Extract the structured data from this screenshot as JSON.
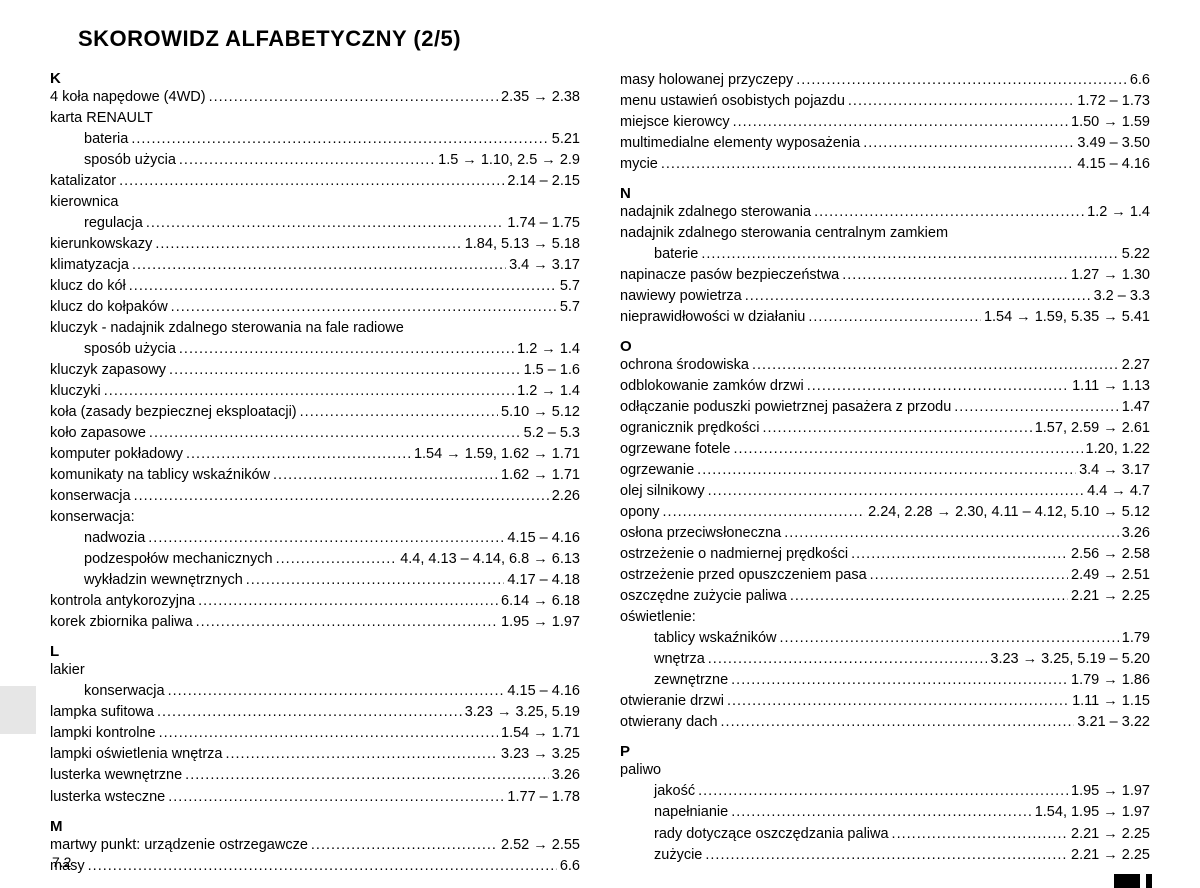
{
  "heading": "SKOROWIDZ ALFABETYCZNY (2/5)",
  "page_number": "7.2",
  "left": {
    "K": {
      "letter": "K",
      "items": [
        {
          "term": "4 koła napędowe (4WD)",
          "pages": "2.35 → 2.38"
        },
        {
          "term": "karta RENAULT",
          "header": true
        },
        {
          "term": "bateria",
          "pages": "5.21",
          "indent": true
        },
        {
          "term": "sposób użycia",
          "pages": "1.5 → 1.10, 2.5 → 2.9",
          "indent": true
        },
        {
          "term": "katalizator",
          "pages": "2.14 – 2.15"
        },
        {
          "term": "kierownica",
          "header": true
        },
        {
          "term": "regulacja",
          "pages": "1.74 – 1.75",
          "indent": true
        },
        {
          "term": "kierunkowskazy",
          "pages": "1.84, 5.13 → 5.18"
        },
        {
          "term": "klimatyzacja",
          "pages": "3.4 → 3.17"
        },
        {
          "term": "klucz do kół",
          "pages": "5.7"
        },
        {
          "term": "klucz do kołpaków",
          "pages": "5.7"
        },
        {
          "term": "kluczyk - nadajnik zdalnego sterowania na fale radiowe",
          "header": true
        },
        {
          "term": "sposób użycia",
          "pages": "1.2 → 1.4",
          "indent": true
        },
        {
          "term": "kluczyk zapasowy",
          "pages": "1.5 – 1.6"
        },
        {
          "term": "kluczyki",
          "pages": "1.2 → 1.4"
        },
        {
          "term": "koła (zasady bezpiecznej eksploatacji)",
          "pages": "5.10 → 5.12"
        },
        {
          "term": "koło zapasowe",
          "pages": "5.2 – 5.3"
        },
        {
          "term": "komputer pokładowy",
          "pages": "1.54 → 1.59, 1.62 → 1.71"
        },
        {
          "term": "komunikaty na tablicy wskaźników",
          "pages": "1.62 → 1.71"
        },
        {
          "term": "konserwacja",
          "pages": "2.26"
        },
        {
          "term": "konserwacja:",
          "header": true
        },
        {
          "term": "nadwozia",
          "pages": "4.15 – 4.16",
          "indent": true
        },
        {
          "term": "podzespołów mechanicznych",
          "pages": "4.4, 4.13 – 4.14, 6.8 → 6.13",
          "indent": true
        },
        {
          "term": "wykładzin wewnętrznych",
          "pages": "4.17 – 4.18",
          "indent": true
        },
        {
          "term": "kontrola antykorozyjna",
          "pages": "6.14 → 6.18"
        },
        {
          "term": "korek zbiornika paliwa",
          "pages": "1.95 → 1.97"
        }
      ]
    },
    "L": {
      "letter": "L",
      "items": [
        {
          "term": "lakier",
          "header": true
        },
        {
          "term": "konserwacja",
          "pages": "4.15 – 4.16",
          "indent": true
        },
        {
          "term": "lampka sufitowa",
          "pages": "3.23 → 3.25, 5.19"
        },
        {
          "term": "lampki kontrolne",
          "pages": "1.54 → 1.71"
        },
        {
          "term": "lampki oświetlenia wnętrza",
          "pages": "3.23 → 3.25"
        },
        {
          "term": "lusterka wewnętrzne",
          "pages": "3.26"
        },
        {
          "term": "lusterka wsteczne",
          "pages": "1.77 – 1.78"
        }
      ]
    },
    "M": {
      "letter": "M",
      "items": [
        {
          "term": "martwy punkt: urządzenie ostrzegawcze",
          "pages": "2.52 → 2.55"
        },
        {
          "term": "masy",
          "pages": "6.6"
        }
      ]
    }
  },
  "right": {
    "cont": {
      "items": [
        {
          "term": "masy holowanej przyczepy",
          "pages": "6.6"
        },
        {
          "term": "menu ustawień osobistych pojazdu",
          "pages": "1.72 – 1.73"
        },
        {
          "term": "miejsce kierowcy",
          "pages": "1.50 → 1.59"
        },
        {
          "term": "multimedialne elementy wyposażenia",
          "pages": "3.49 – 3.50"
        },
        {
          "term": "mycie",
          "pages": "4.15 – 4.16"
        }
      ]
    },
    "N": {
      "letter": "N",
      "items": [
        {
          "term": "nadajnik zdalnego sterowania",
          "pages": "1.2 → 1.4"
        },
        {
          "term": "nadajnik zdalnego sterowania centralnym zamkiem",
          "header": true
        },
        {
          "term": "baterie",
          "pages": "5.22",
          "indent": true
        },
        {
          "term": "napinacze pasów bezpieczeństwa",
          "pages": "1.27 → 1.30"
        },
        {
          "term": "nawiewy powietrza",
          "pages": "3.2 – 3.3"
        },
        {
          "term": "nieprawidłowości w działaniu",
          "pages": "1.54 → 1.59, 5.35 → 5.41"
        }
      ]
    },
    "O": {
      "letter": "O",
      "items": [
        {
          "term": "ochrona środowiska",
          "pages": "2.27"
        },
        {
          "term": "odblokowanie zamków drzwi",
          "pages": "1.11 → 1.13"
        },
        {
          "term": "odłączanie poduszki powietrznej pasażera z przodu",
          "pages": "1.47"
        },
        {
          "term": "ogranicznik prędkości",
          "pages": "1.57, 2.59 → 2.61"
        },
        {
          "term": "ogrzewane fotele",
          "pages": "1.20, 1.22"
        },
        {
          "term": "ogrzewanie",
          "pages": "3.4 → 3.17"
        },
        {
          "term": "olej silnikowy",
          "pages": "4.4 → 4.7"
        },
        {
          "term": "opony",
          "pages": "2.24, 2.28 → 2.30, 4.11 – 4.12, 5.10 → 5.12"
        },
        {
          "term": "osłona przeciwsłoneczna",
          "pages": "3.26"
        },
        {
          "term": "ostrzeżenie o nadmiernej prędkości",
          "pages": "2.56 → 2.58"
        },
        {
          "term": "ostrzeżenie przed opuszczeniem pasa",
          "pages": "2.49 → 2.51"
        },
        {
          "term": "oszczędne zużycie paliwa",
          "pages": "2.21 → 2.25"
        },
        {
          "term": "oświetlenie:",
          "header": true
        },
        {
          "term": "tablicy wskaźników",
          "pages": "1.79",
          "indent": true
        },
        {
          "term": "wnętrza",
          "pages": "3.23 → 3.25, 5.19 – 5.20",
          "indent": true
        },
        {
          "term": "zewnętrzne",
          "pages": "1.79 → 1.86",
          "indent": true
        },
        {
          "term": "otwieranie drzwi",
          "pages": "1.11 → 1.15"
        },
        {
          "term": "otwierany dach",
          "pages": "3.21 – 3.22"
        }
      ]
    },
    "P": {
      "letter": "P",
      "items": [
        {
          "term": "paliwo",
          "header": true
        },
        {
          "term": "jakość",
          "pages": "1.95 → 1.97",
          "indent": true
        },
        {
          "term": "napełnianie",
          "pages": "1.54, 1.95 → 1.97",
          "indent": true
        },
        {
          "term": "rady dotyczące oszczędzania paliwa",
          "pages": "2.21 → 2.25",
          "indent": true
        },
        {
          "term": "zużycie",
          "pages": "2.21 → 2.25",
          "indent": true
        }
      ]
    }
  }
}
